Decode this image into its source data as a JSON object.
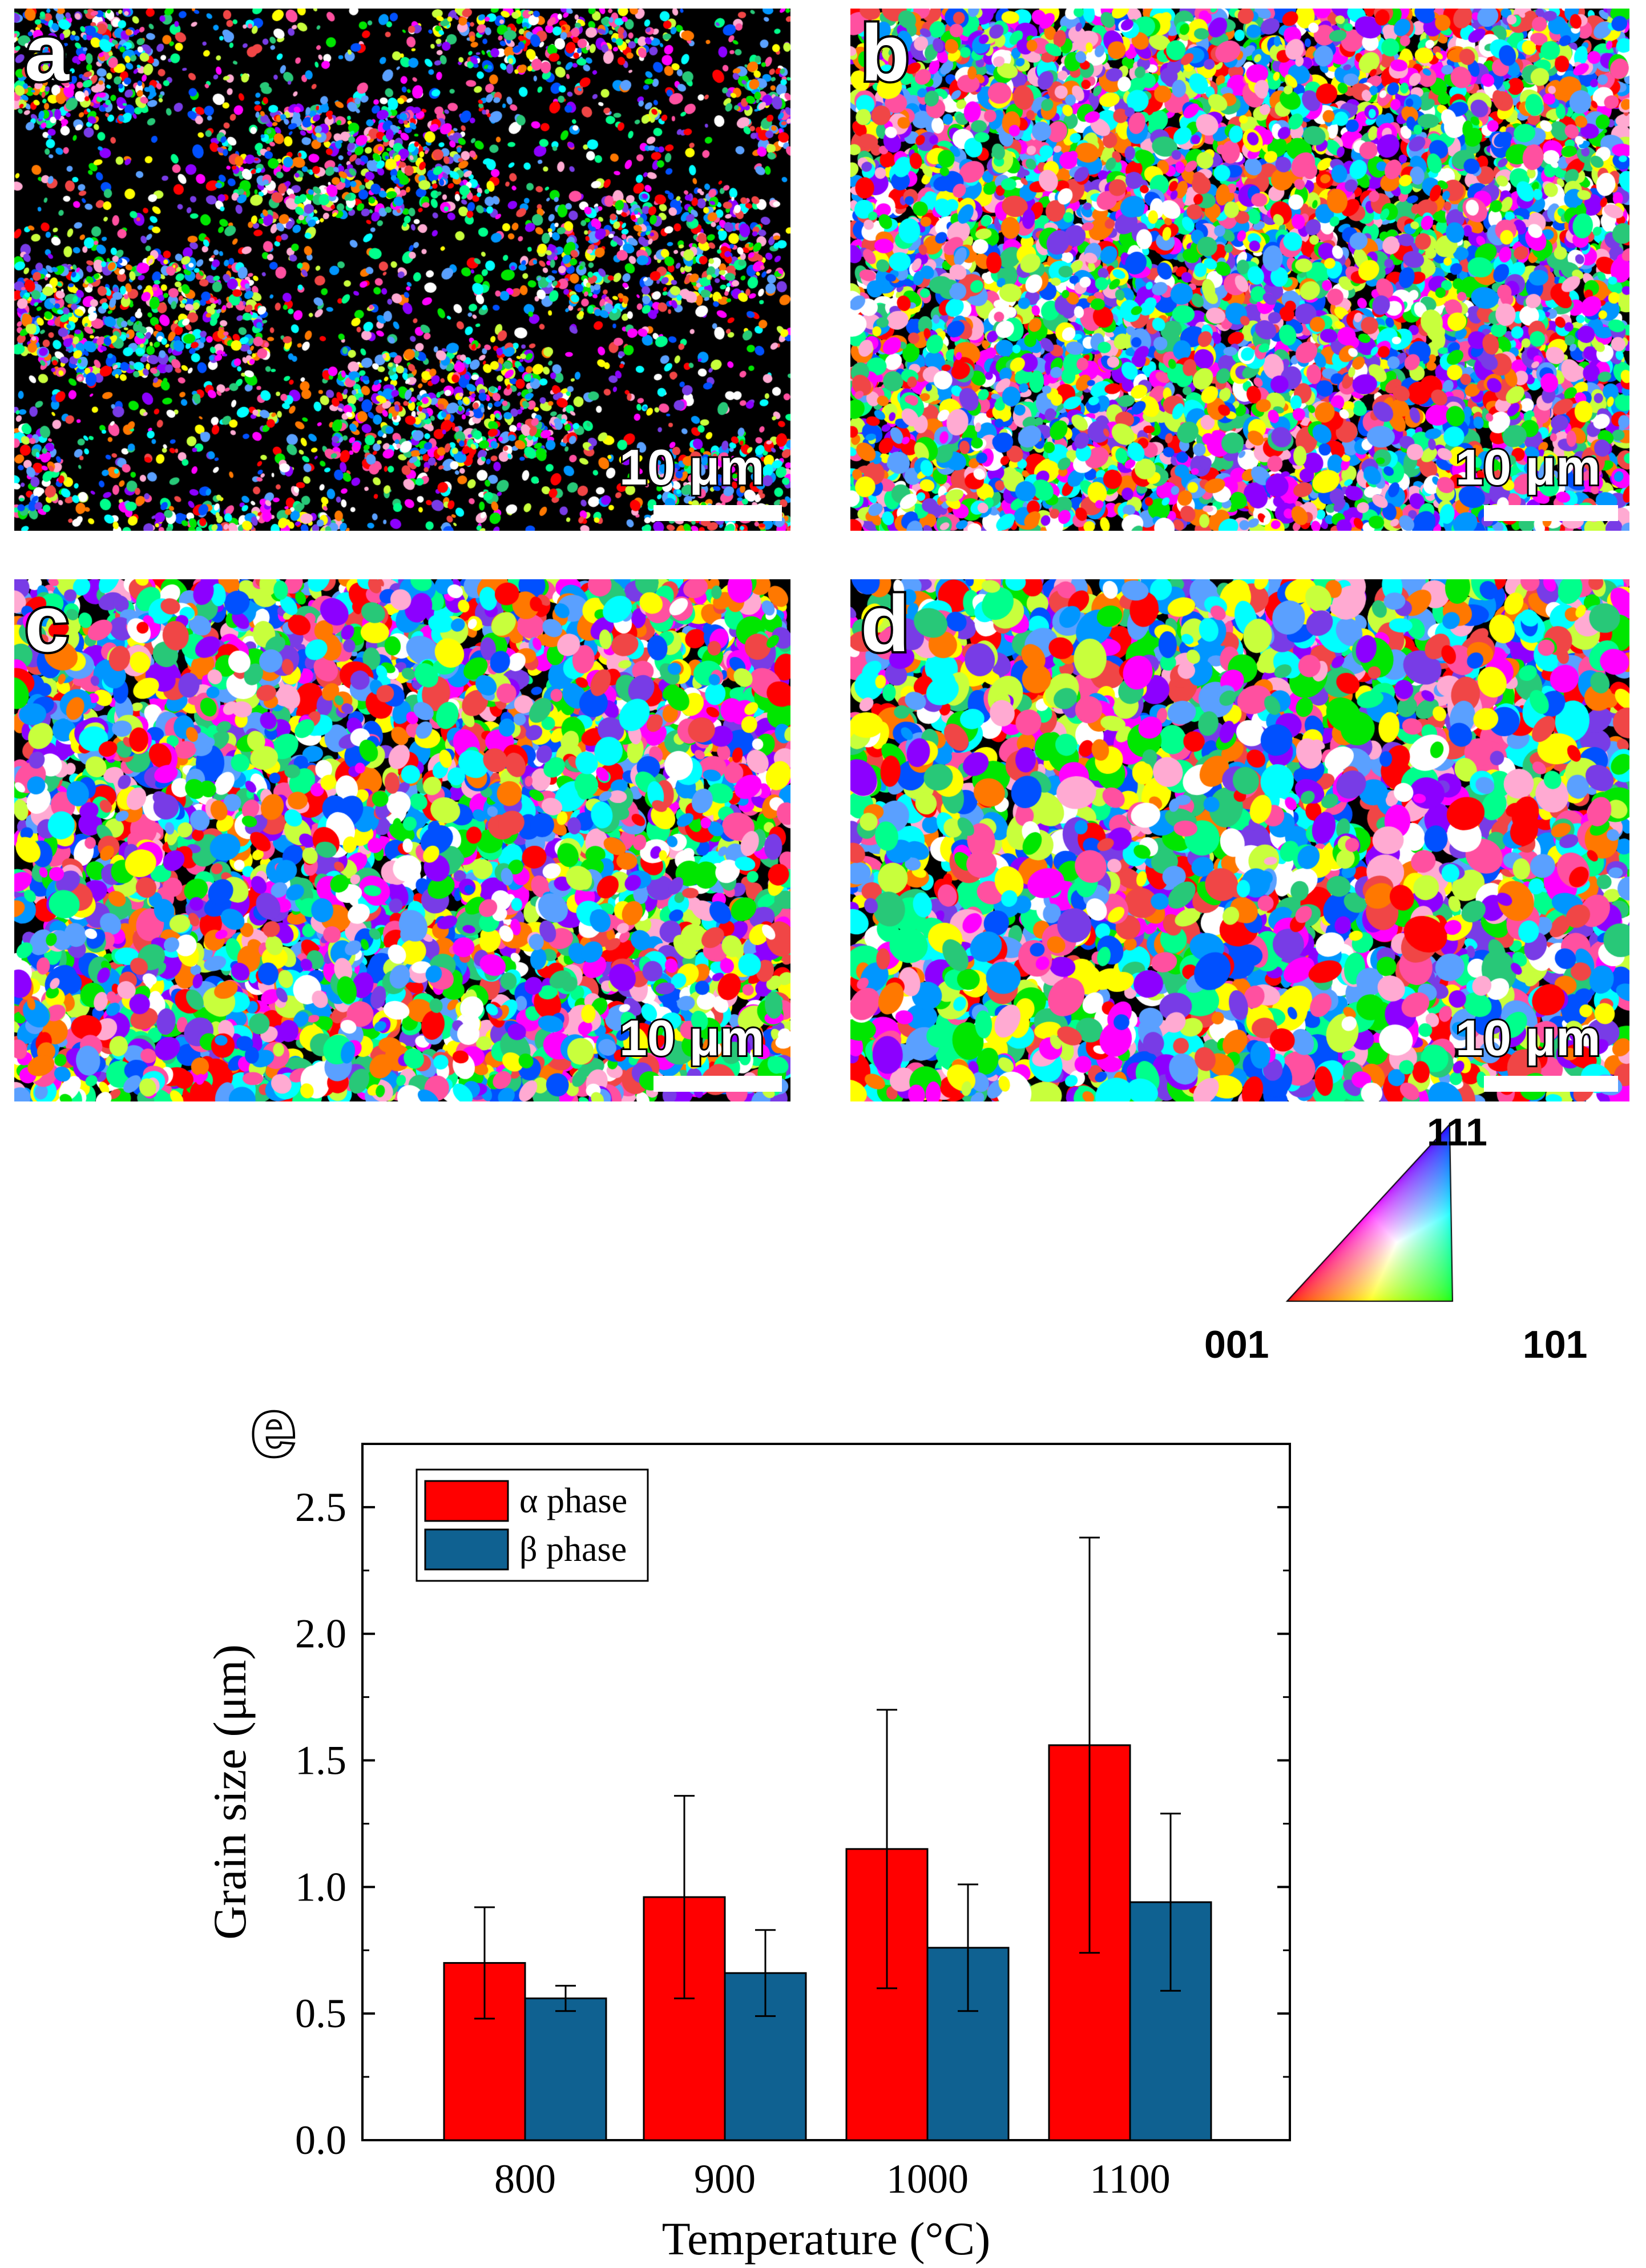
{
  "figure": {
    "panels": [
      {
        "label": "a",
        "scale_label": "10 μm"
      },
      {
        "label": "b",
        "scale_label": "10 μm"
      },
      {
        "label": "c",
        "scale_label": "10 μm"
      },
      {
        "label": "d",
        "scale_label": "10 μm"
      }
    ],
    "ipf_key": {
      "top": "111",
      "left": "001",
      "right": "101"
    },
    "chart_panel_label": "e"
  },
  "chart_data": {
    "type": "bar",
    "title": "",
    "xlabel": "Temperature (°C)",
    "ylabel": "Grain size (μm)",
    "categories": [
      "800",
      "900",
      "1000",
      "1100"
    ],
    "ylim": [
      0.0,
      2.75
    ],
    "yticks": [
      "0.0",
      "0.5",
      "1.0",
      "1.5",
      "2.0",
      "2.5"
    ],
    "legend_position": "top-left",
    "series": [
      {
        "name": "α phase",
        "color": "#ff0000",
        "values": [
          0.7,
          0.96,
          1.15,
          1.56
        ],
        "errors": [
          0.22,
          0.4,
          0.55,
          0.82
        ]
      },
      {
        "name": "β phase",
        "color": "#0f6191",
        "values": [
          0.56,
          0.66,
          0.76,
          0.94
        ],
        "errors": [
          0.05,
          0.17,
          0.25,
          0.35
        ]
      }
    ]
  }
}
